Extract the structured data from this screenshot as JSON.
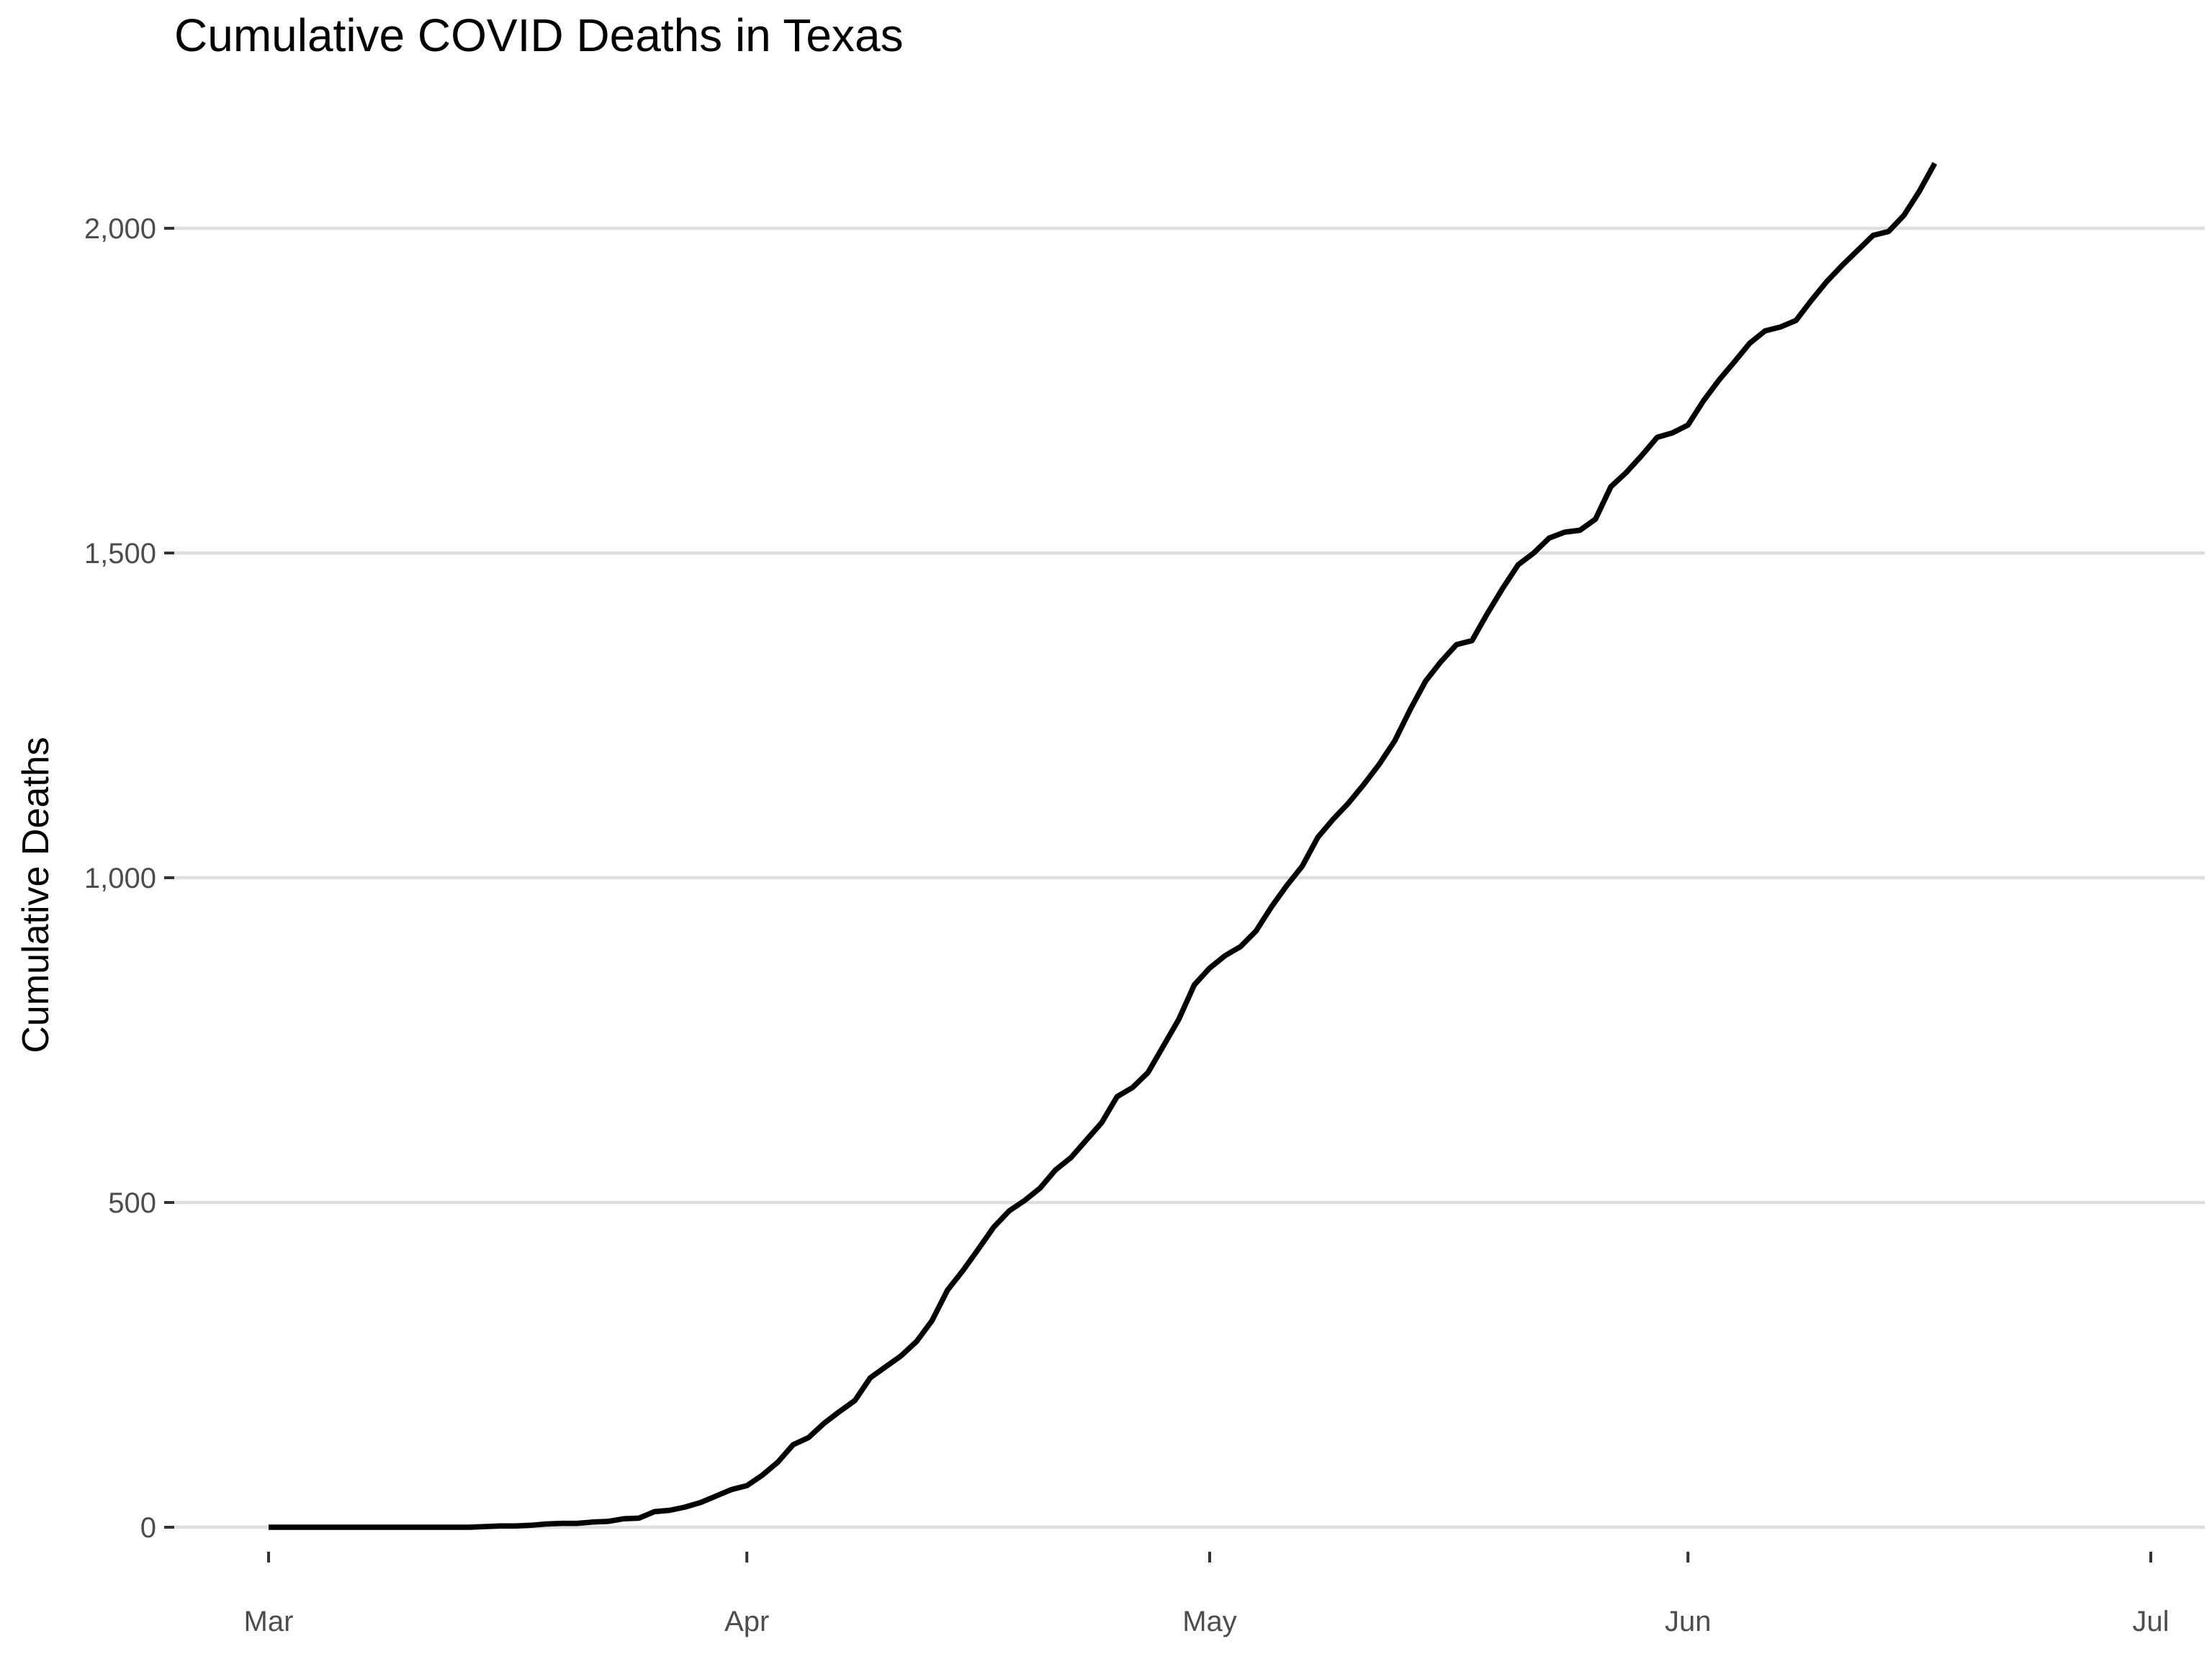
{
  "chart_data": {
    "type": "line",
    "title": "Cumulative COVID Deaths in Texas",
    "xlabel": "",
    "ylabel": "Cumulative Deaths",
    "xlim": [
      "2020-03-01",
      "2020-07-01"
    ],
    "ylim": [
      0,
      2100
    ],
    "x_ticks": [
      {
        "date": "2020-03-01",
        "label": "Mar"
      },
      {
        "date": "2020-04-01",
        "label": "Apr"
      },
      {
        "date": "2020-05-01",
        "label": "May"
      },
      {
        "date": "2020-06-01",
        "label": "Jun"
      },
      {
        "date": "2020-07-01",
        "label": "Jul"
      }
    ],
    "y_ticks": [
      {
        "value": 0,
        "label": "0"
      },
      {
        "value": 500,
        "label": "500"
      },
      {
        "value": 1000,
        "label": "1,000"
      },
      {
        "value": 1500,
        "label": "1,500"
      },
      {
        "value": 2000,
        "label": "2,000"
      }
    ],
    "grid": true,
    "line_color": "#000000",
    "grid_color": "#dedde4",
    "series": [
      {
        "x": [
          "2020-03-01",
          "2020-03-02",
          "2020-03-03",
          "2020-03-04",
          "2020-03-05",
          "2020-03-06",
          "2020-03-07",
          "2020-03-08",
          "2020-03-09",
          "2020-03-10",
          "2020-03-11",
          "2020-03-12",
          "2020-03-13",
          "2020-03-14",
          "2020-03-15",
          "2020-03-16",
          "2020-03-17",
          "2020-03-18",
          "2020-03-19",
          "2020-03-20",
          "2020-03-21",
          "2020-03-22",
          "2020-03-23",
          "2020-03-24",
          "2020-03-25",
          "2020-03-26",
          "2020-03-27",
          "2020-03-28",
          "2020-03-29",
          "2020-03-30",
          "2020-03-31",
          "2020-04-01",
          "2020-04-02",
          "2020-04-03",
          "2020-04-04",
          "2020-04-05",
          "2020-04-06",
          "2020-04-07",
          "2020-04-08",
          "2020-04-09",
          "2020-04-10",
          "2020-04-11",
          "2020-04-12",
          "2020-04-13",
          "2020-04-14",
          "2020-04-15",
          "2020-04-16",
          "2020-04-17",
          "2020-04-18",
          "2020-04-19",
          "2020-04-20",
          "2020-04-21",
          "2020-04-22",
          "2020-04-23",
          "2020-04-24",
          "2020-04-25",
          "2020-04-26",
          "2020-04-27",
          "2020-04-28",
          "2020-04-29",
          "2020-04-30",
          "2020-05-01",
          "2020-05-02",
          "2020-05-03",
          "2020-05-04",
          "2020-05-05",
          "2020-05-06",
          "2020-05-07",
          "2020-05-08",
          "2020-05-09",
          "2020-05-10",
          "2020-05-11",
          "2020-05-12",
          "2020-05-13",
          "2020-05-14",
          "2020-05-15",
          "2020-05-16",
          "2020-05-17",
          "2020-05-18",
          "2020-05-19",
          "2020-05-20",
          "2020-05-21",
          "2020-05-22",
          "2020-05-23",
          "2020-05-24",
          "2020-05-25",
          "2020-05-26",
          "2020-05-27",
          "2020-05-28",
          "2020-05-29",
          "2020-05-30",
          "2020-05-31",
          "2020-06-01",
          "2020-06-02",
          "2020-06-03",
          "2020-06-04",
          "2020-06-05",
          "2020-06-06",
          "2020-06-07",
          "2020-06-08",
          "2020-06-09",
          "2020-06-10",
          "2020-06-11",
          "2020-06-12",
          "2020-06-13",
          "2020-06-14",
          "2020-06-15",
          "2020-06-16",
          "2020-06-17"
        ],
        "y": [
          0,
          0,
          0,
          0,
          0,
          0,
          0,
          0,
          0,
          0,
          0,
          0,
          0,
          0,
          1,
          2,
          2,
          3,
          5,
          6,
          6,
          8,
          9,
          13,
          14,
          24,
          26,
          31,
          38,
          48,
          58,
          64,
          80,
          100,
          127,
          138,
          160,
          178,
          195,
          230,
          247,
          264,
          286,
          318,
          365,
          395,
          428,
          462,
          487,
          503,
          522,
          550,
          569,
          596,
          623,
          663,
          677,
          700,
          741,
          782,
          835,
          861,
          880,
          894,
          918,
          955,
          988,
          1018,
          1062,
          1090,
          1115,
          1144,
          1175,
          1211,
          1259,
          1303,
          1333,
          1359,
          1365,
          1407,
          1446,
          1482,
          1500,
          1523,
          1532,
          1535,
          1552,
          1602,
          1624,
          1650,
          1678,
          1685,
          1697,
          1734,
          1766,
          1794,
          1823,
          1842,
          1848,
          1858,
          1889,
          1918,
          1943,
          1966,
          1989,
          1995,
          2020,
          2057,
          2100
        ]
      }
    ]
  }
}
